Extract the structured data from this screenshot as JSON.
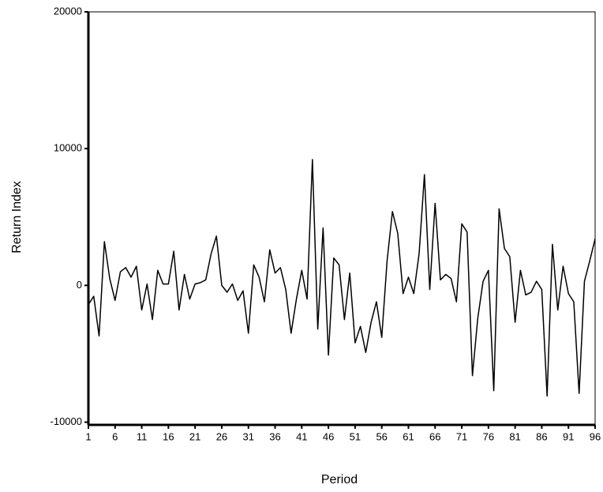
{
  "chart_data": {
    "type": "line",
    "x_label": "Period",
    "y_label": "Return Index",
    "x": [
      1,
      2,
      3,
      4,
      5,
      6,
      7,
      8,
      9,
      10,
      11,
      12,
      13,
      14,
      15,
      16,
      17,
      18,
      19,
      20,
      21,
      22,
      23,
      24,
      25,
      26,
      27,
      28,
      29,
      30,
      31,
      32,
      33,
      34,
      35,
      36,
      37,
      38,
      39,
      40,
      41,
      42,
      43,
      44,
      45,
      46,
      47,
      48,
      49,
      50,
      51,
      52,
      53,
      54,
      55,
      56,
      57,
      58,
      59,
      60,
      61,
      62,
      63,
      64,
      65,
      66,
      67,
      68,
      69,
      70,
      71,
      72,
      73,
      74,
      75,
      76,
      77,
      78,
      79,
      80,
      81,
      82,
      83,
      84,
      85,
      86,
      87,
      88,
      89,
      90,
      91,
      92,
      93,
      94,
      95,
      96
    ],
    "values": [
      -1400,
      -800,
      -3700,
      3200,
      500,
      -1100,
      1000,
      1300,
      600,
      1400,
      -1800,
      100,
      -2500,
      1100,
      100,
      100,
      2500,
      -1800,
      800,
      -1000,
      100,
      200,
      400,
      2300,
      3600,
      0,
      -500,
      100,
      -1100,
      -400,
      -3500,
      1500,
      600,
      -1200,
      2600,
      900,
      1300,
      -300,
      -3500,
      -1000,
      1100,
      -1000,
      9200,
      -3200,
      4200,
      -5100,
      2000,
      1500,
      -2500,
      900,
      -4200,
      -3000,
      -4900,
      -2700,
      -1200,
      -3800,
      1800,
      5400,
      3800,
      -600,
      600,
      -600,
      2300,
      8100,
      -300,
      6000,
      400,
      800,
      500,
      -1200,
      4500,
      3900,
      -6600,
      -2400,
      300,
      1100,
      -7700,
      5600,
      2700,
      2100,
      -2700,
      1100,
      -700,
      -500,
      300,
      -300,
      -8100,
      3000,
      -1800,
      1400,
      -600,
      -1200,
      -7900,
      300,
      1800,
      3400
    ],
    "color": "#000000",
    "xlim": [
      1,
      96
    ],
    "xticks": [
      1,
      6,
      11,
      16,
      21,
      26,
      31,
      36,
      41,
      46,
      51,
      56,
      61,
      66,
      71,
      76,
      81,
      86,
      91,
      96
    ],
    "ylim": [
      -10200,
      20000
    ],
    "yticks": [
      -10000,
      0,
      10000,
      20000
    ]
  }
}
